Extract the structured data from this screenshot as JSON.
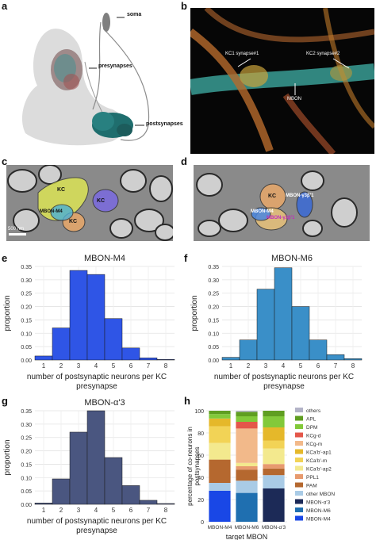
{
  "panels": {
    "a": "a",
    "b": "b",
    "c": "c",
    "d": "d",
    "e": "e",
    "f": "f",
    "g": "g",
    "h": "h"
  },
  "panel_a": {
    "labels": {
      "soma": "soma",
      "presynapses": "presynapses",
      "postsynapses": "postsynapses"
    }
  },
  "panel_b": {
    "labels": {
      "kc1": "KC1 synapse#1",
      "kc2": "KC2 synapse#2",
      "mbon": "MBON"
    }
  },
  "panel_c": {
    "labels": {
      "kc_top": "KC",
      "kc_right": "KC",
      "kc_bottom": "KC",
      "mbon": "MBON-M4",
      "scale": "500 nm"
    }
  },
  "panel_d": {
    "labels": {
      "kc": "KC",
      "mbon_g3b1_top": "MBON-γ3β'1",
      "mbon_m4": "MBON-M4",
      "mbon_g3b1_bottom": "MBON-γ3β'1"
    }
  },
  "chart_data": [
    {
      "panel": "e",
      "type": "bar",
      "title": "MBON-M4",
      "xlabel": "number of postsynaptic neurons per KC presynapse",
      "ylabel": "proportion",
      "categories": [
        "1",
        "2",
        "3",
        "4",
        "5",
        "6",
        "7",
        "8"
      ],
      "x": [
        1,
        2,
        3,
        4,
        5,
        6,
        7,
        8
      ],
      "values": [
        0.015,
        0.12,
        0.335,
        0.32,
        0.155,
        0.045,
        0.008,
        0.002
      ],
      "ylim": [
        0,
        0.35
      ],
      "yticks": [
        "0.00",
        "0.05",
        "0.10",
        "0.15",
        "0.20",
        "0.25",
        "0.30",
        "0.35"
      ],
      "color": "#2f55e6",
      "grid": true
    },
    {
      "panel": "f",
      "type": "bar",
      "title": "MBON-M6",
      "xlabel": "number of postsynaptic neurons per KC presynapse",
      "ylabel": "proportion",
      "categories": [
        "1",
        "2",
        "3",
        "4",
        "5",
        "6",
        "7",
        "8"
      ],
      "x": [
        1,
        2,
        3,
        4,
        5,
        6,
        7,
        8
      ],
      "values": [
        0.01,
        0.075,
        0.265,
        0.345,
        0.2,
        0.075,
        0.02,
        0.005
      ],
      "ylim": [
        0,
        0.35
      ],
      "yticks": [
        "0.00",
        "0.05",
        "0.10",
        "0.15",
        "0.20",
        "0.25",
        "0.30",
        "0.35"
      ],
      "color": "#3a8fc8",
      "grid": true
    },
    {
      "panel": "g",
      "type": "bar",
      "title": "MBON-α'3",
      "xlabel": "number of postsynaptic neurons per KC presynapse",
      "ylabel": "proportion",
      "categories": [
        "1",
        "2",
        "3",
        "4",
        "5",
        "6",
        "7",
        "8"
      ],
      "x": [
        1,
        2,
        3,
        4,
        5,
        6,
        7,
        8
      ],
      "values": [
        0.005,
        0.095,
        0.27,
        0.35,
        0.175,
        0.07,
        0.015,
        0.003
      ],
      "ylim": [
        0,
        0.35
      ],
      "yticks": [
        "0.00",
        "0.05",
        "0.10",
        "0.15",
        "0.20",
        "0.25",
        "0.30",
        "0.35"
      ],
      "color": "#4a5680",
      "grid": true
    },
    {
      "panel": "h",
      "type": "bar",
      "stacked": true,
      "title": "",
      "xlabel": "target MBON",
      "ylabel": "percentage of co-neurons in postsynapses",
      "categories": [
        "MBON-M4",
        "MBON-M6",
        "MBON-α'3"
      ],
      "ylim": [
        0,
        100
      ],
      "yticks": [
        "0",
        "20",
        "40",
        "60",
        "80",
        "100"
      ],
      "legend_position": "right",
      "series": [
        {
          "name": "MBON-M4",
          "color": "#1947e6",
          "values": [
            28,
            0,
            0
          ]
        },
        {
          "name": "MBON-M6",
          "color": "#1f6fb0",
          "values": [
            0,
            26,
            0
          ]
        },
        {
          "name": "MBON-α'3",
          "color": "#1c2a57",
          "values": [
            0,
            0,
            30
          ]
        },
        {
          "name": "other MBON",
          "color": "#a9cbe6",
          "values": [
            7,
            11,
            12
          ]
        },
        {
          "name": "PAM",
          "color": "#b5682f",
          "values": [
            21,
            10,
            6
          ]
        },
        {
          "name": "PPL1",
          "color": "#e79a6e",
          "values": [
            0,
            3,
            4
          ]
        },
        {
          "name": "KCa'b'-ap2",
          "color": "#f3e98e",
          "values": [
            15,
            3,
            14
          ]
        },
        {
          "name": "KCa'b'-m",
          "color": "#f2d356",
          "values": [
            15,
            0,
            7
          ]
        },
        {
          "name": "KCa'b'-ap1",
          "color": "#e5b82a",
          "values": [
            7,
            0,
            12
          ]
        },
        {
          "name": "KCg-m",
          "color": "#f2b98a",
          "values": [
            0,
            31,
            0
          ]
        },
        {
          "name": "KCg-d",
          "color": "#e4574a",
          "values": [
            0,
            6,
            0
          ]
        },
        {
          "name": "DPM",
          "color": "#82c93a",
          "values": [
            4,
            5,
            10
          ]
        },
        {
          "name": "APL",
          "color": "#5f9e21",
          "values": [
            3,
            4,
            5
          ]
        },
        {
          "name": "others",
          "color": "#b3b3c7",
          "values": [
            0,
            1,
            0
          ]
        }
      ],
      "legend_order": [
        "others",
        "APL",
        "DPM",
        "KCg-d",
        "KCg-m",
        "KCa'b'-ap1",
        "KCa'b'-m",
        "KCa'b'-ap2",
        "PPL1",
        "PAM",
        "other MBON",
        "MBON-α'3",
        "MBON-M6",
        "MBON-M4"
      ]
    }
  ]
}
